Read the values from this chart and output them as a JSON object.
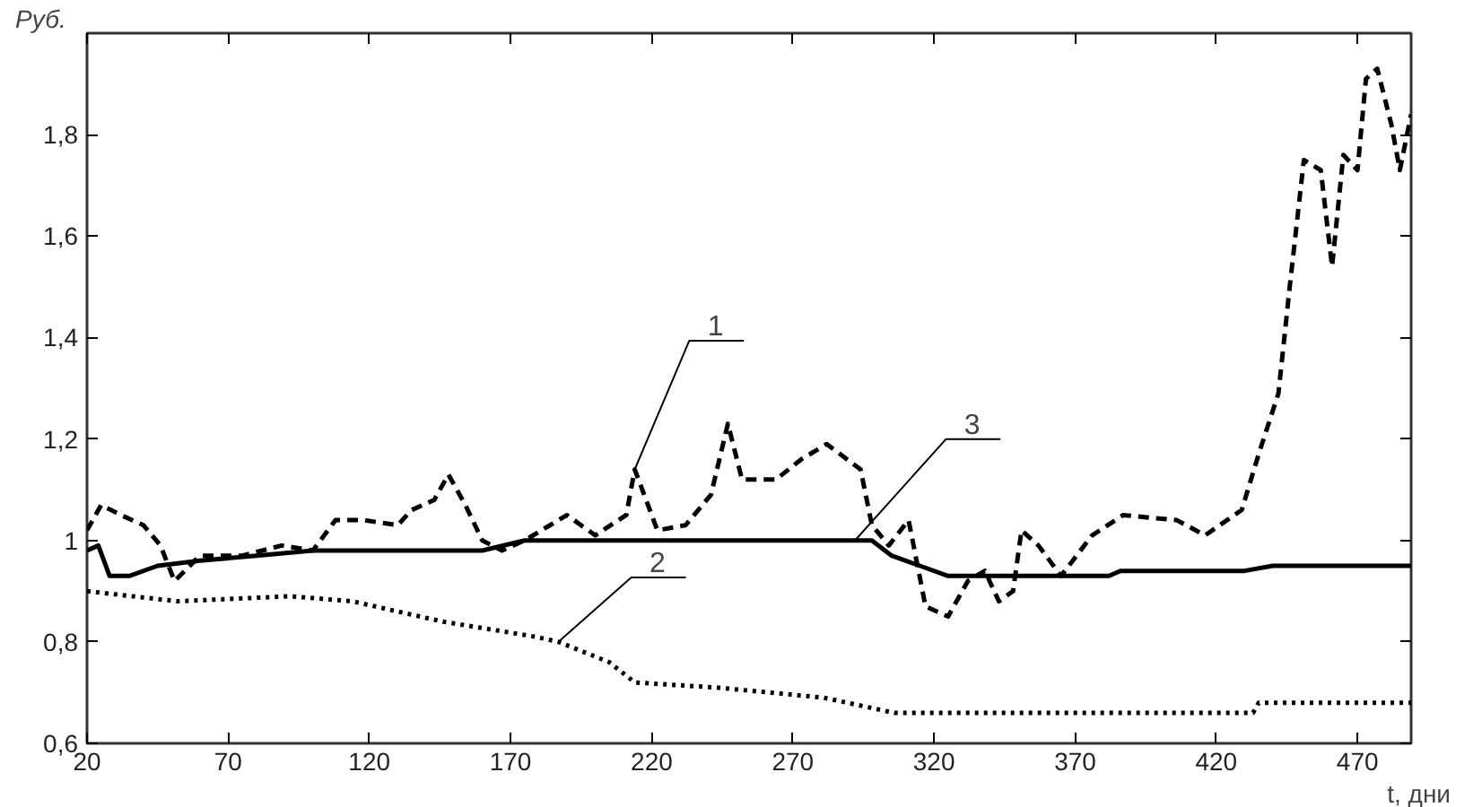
{
  "chart_data": {
    "type": "line",
    "xlabel": "t, дни",
    "ylabel": "Руб.",
    "xlim": [
      20,
      489
    ],
    "ylim": [
      0.6,
      2.0
    ],
    "xticks": [
      20,
      70,
      120,
      170,
      220,
      270,
      320,
      370,
      420,
      470
    ],
    "yticks": [
      {
        "value": 0.6,
        "label": "0,6"
      },
      {
        "value": 0.8,
        "label": "0,8"
      },
      {
        "value": 1,
        "label": "1"
      },
      {
        "value": 1.2,
        "label": "1,2"
      },
      {
        "value": 1.4,
        "label": "1,4"
      },
      {
        "value": 1.6,
        "label": "1,6"
      },
      {
        "value": 1.8,
        "label": "1,8"
      }
    ],
    "grid": false,
    "marker": "none",
    "series": [
      {
        "color": "#000000",
        "line_style": "dashed",
        "x": [
          20,
          25,
          32,
          40,
          46,
          51,
          60,
          75,
          89,
          100,
          108,
          118,
          130,
          135,
          143,
          148,
          151,
          154,
          160,
          167,
          175,
          184,
          190,
          200,
          211,
          214,
          222,
          232,
          241,
          247,
          252,
          264,
          273,
          282,
          294,
          298,
          304,
          311,
          317,
          325,
          332,
          338,
          343,
          348,
          351,
          357,
          365,
          376,
          387,
          406,
          416,
          429,
          435,
          442,
          446,
          451,
          457,
          461,
          465,
          470,
          473,
          477,
          482,
          485,
          489
        ],
        "values": [
          1.02,
          1.07,
          1.05,
          1.03,
          0.99,
          0.92,
          0.97,
          0.97,
          0.99,
          0.98,
          1.04,
          1.04,
          1.03,
          1.06,
          1.08,
          1.13,
          1.1,
          1.07,
          1.0,
          0.98,
          1.0,
          1.03,
          1.05,
          1.01,
          1.05,
          1.14,
          1.02,
          1.03,
          1.09,
          1.23,
          1.12,
          1.12,
          1.16,
          1.19,
          1.14,
          1.03,
          0.99,
          1.04,
          0.87,
          0.85,
          0.92,
          0.94,
          0.88,
          0.9,
          1.02,
          0.99,
          0.93,
          1.01,
          1.05,
          1.04,
          1.01,
          1.06,
          1.17,
          1.29,
          1.5,
          1.75,
          1.73,
          1.54,
          1.76,
          1.73,
          1.91,
          1.93,
          1.82,
          1.73,
          1.84
        ]
      },
      {
        "color": "#000000",
        "line_style": "dotted",
        "x": [
          20,
          52,
          92,
          114,
          146,
          179,
          187,
          205,
          214,
          243,
          281,
          306,
          370,
          433,
          435,
          489
        ],
        "values": [
          0.9,
          0.88,
          0.89,
          0.88,
          0.84,
          0.81,
          0.8,
          0.76,
          0.72,
          0.71,
          0.69,
          0.66,
          0.66,
          0.66,
          0.68,
          0.68
        ]
      },
      {
        "color": "#000000",
        "line_style": "solid",
        "x": [
          20,
          24,
          28,
          35,
          45,
          60,
          80,
          100,
          160,
          175,
          298,
          305,
          315,
          325,
          382,
          386,
          430,
          440,
          489
        ],
        "values": [
          0.98,
          0.99,
          0.93,
          0.93,
          0.95,
          0.96,
          0.97,
          0.98,
          0.98,
          1.0,
          1.0,
          0.97,
          0.95,
          0.93,
          0.93,
          0.94,
          0.94,
          0.95,
          0.95
        ]
      }
    ],
    "annotations": [
      {
        "text": "1",
        "x": 214,
        "y": 1.14
      },
      {
        "text": "2",
        "x": 187,
        "y": 0.8
      },
      {
        "text": "3",
        "x": 292,
        "y": 1.0
      }
    ]
  }
}
